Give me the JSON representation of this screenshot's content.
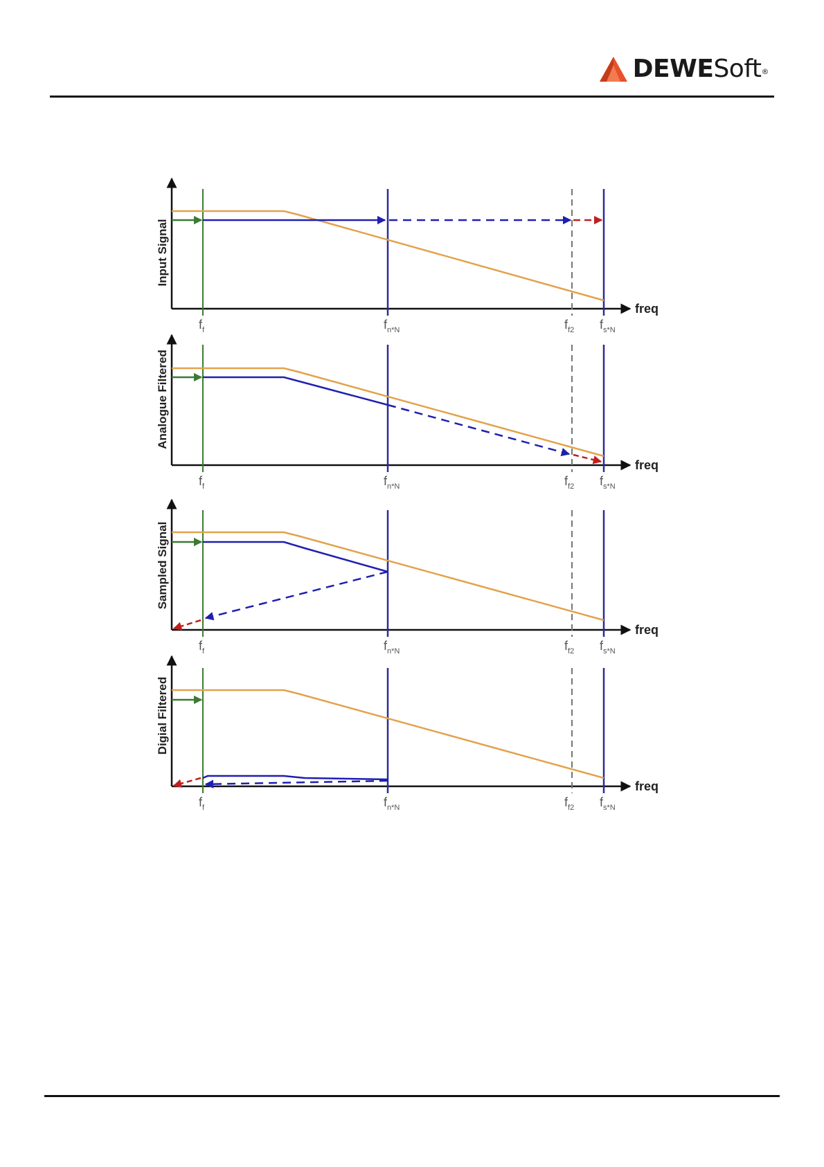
{
  "header": {
    "brand_bold": "DEWE",
    "brand_light": "Soft",
    "brand_mark": "®",
    "logo_icon": "triangle-logo-icon",
    "logo_color": "#e8512a"
  },
  "colors": {
    "analog_spectrum": "#e2a24c",
    "signal": "#1f1fb0",
    "alias": "#c01f1f",
    "cutoff": "#3c7a32",
    "marker_line": "#2a2a9a",
    "dashed_marker": "#6e7a6e",
    "axis": "#111111"
  },
  "diagram": {
    "x_axis_label": "freq",
    "markers": [
      {
        "id": "ff",
        "main": "f",
        "sub": "f"
      },
      {
        "id": "fnN",
        "main": "f",
        "sub": "n*N"
      },
      {
        "id": "ff2",
        "main": "f",
        "sub": "f2"
      },
      {
        "id": "fsN",
        "main": "f",
        "sub": "s*N"
      }
    ],
    "panels": [
      {
        "id": "input",
        "label": "Input Signal"
      },
      {
        "id": "analogue",
        "label": "Analogue Filtered"
      },
      {
        "id": "sampled",
        "label": "Sampled Signal"
      },
      {
        "id": "digital",
        "label": "Digial Filtered"
      }
    ]
  }
}
